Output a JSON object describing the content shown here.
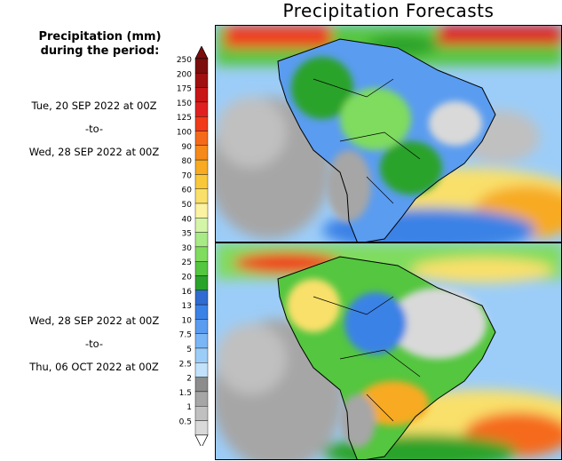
{
  "title": "Precipitation Forecasts",
  "legend": {
    "heading_line1": "Precipitation (mm)",
    "heading_line2": "during the period:",
    "levels": [
      "250",
      "200",
      "175",
      "150",
      "125",
      "100",
      "90",
      "80",
      "70",
      "60",
      "50",
      "40",
      "35",
      "30",
      "25",
      "20",
      "16",
      "13",
      "10",
      "7.5",
      "5",
      "2.5",
      "2",
      "1.5",
      "1",
      "0.5"
    ],
    "colors": [
      "#7b0d0d",
      "#a01010",
      "#c81515",
      "#e02020",
      "#f03a1a",
      "#f56a1a",
      "#f58a1a",
      "#f7aa22",
      "#f8c83a",
      "#f9e06a",
      "#fbf2a2",
      "#d4f5a8",
      "#a8ea86",
      "#7fdc5e",
      "#54c63f",
      "#2aa32a",
      "#2f6bd0",
      "#3b82e6",
      "#5a9cf0",
      "#7ab6f5",
      "#9ccdf8",
      "#c2e2fb",
      "#8c8c8c",
      "#a6a6a6",
      "#c0c0c0",
      "#d9d9d9"
    ]
  },
  "periods": [
    {
      "start": "Tue, 20 SEP 2022 at 00Z",
      "sep": "-to-",
      "end": "Wed, 28 SEP 2022 at 00Z"
    },
    {
      "start": "Wed, 28 SEP 2022 at 00Z",
      "sep": "-to-",
      "end": "Thu, 06 OCT 2022 at 00Z"
    }
  ],
  "maps": [
    {
      "name": "forecast-map-period-1"
    },
    {
      "name": "forecast-map-period-2"
    }
  ]
}
